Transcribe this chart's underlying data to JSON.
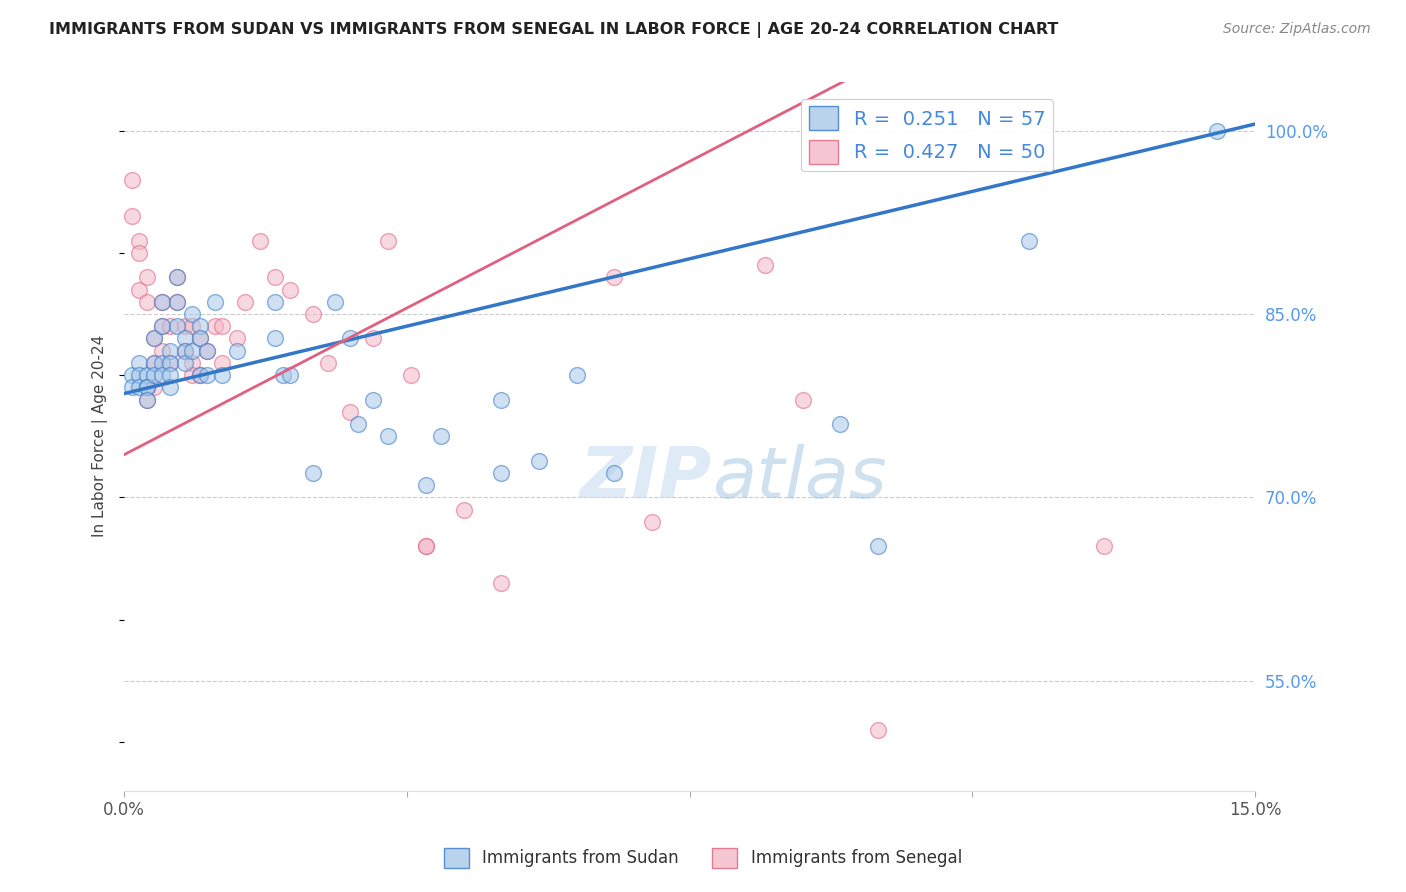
{
  "title": "IMMIGRANTS FROM SUDAN VS IMMIGRANTS FROM SENEGAL IN LABOR FORCE | AGE 20-24 CORRELATION CHART",
  "source": "Source: ZipAtlas.com",
  "ylabel": "In Labor Force | Age 20-24",
  "xlim": [
    0.0,
    0.15
  ],
  "ylim": [
    0.46,
    1.04
  ],
  "sudan_color": "#a8c8e8",
  "senegal_color": "#f4b8c8",
  "sudan_line_color": "#3378c8",
  "senegal_line_color": "#e06080",
  "sudan_R": 0.251,
  "sudan_N": 57,
  "senegal_R": 0.427,
  "senegal_N": 50,
  "background_color": "#ffffff",
  "grid_color": "#cccccc",
  "sudan_scatter_x": [
    0.001,
    0.001,
    0.002,
    0.002,
    0.002,
    0.003,
    0.003,
    0.003,
    0.003,
    0.004,
    0.004,
    0.004,
    0.005,
    0.005,
    0.005,
    0.005,
    0.006,
    0.006,
    0.006,
    0.006,
    0.007,
    0.007,
    0.007,
    0.008,
    0.008,
    0.008,
    0.009,
    0.009,
    0.01,
    0.01,
    0.01,
    0.011,
    0.011,
    0.012,
    0.013,
    0.015,
    0.02,
    0.02,
    0.021,
    0.022,
    0.025,
    0.028,
    0.03,
    0.031,
    0.033,
    0.035,
    0.04,
    0.042,
    0.05,
    0.05,
    0.055,
    0.06,
    0.065,
    0.095,
    0.1,
    0.12,
    0.145
  ],
  "sudan_scatter_y": [
    0.8,
    0.79,
    0.81,
    0.8,
    0.79,
    0.8,
    0.79,
    0.79,
    0.78,
    0.83,
    0.81,
    0.8,
    0.86,
    0.84,
    0.81,
    0.8,
    0.82,
    0.81,
    0.8,
    0.79,
    0.88,
    0.86,
    0.84,
    0.83,
    0.82,
    0.81,
    0.85,
    0.82,
    0.84,
    0.83,
    0.8,
    0.82,
    0.8,
    0.86,
    0.8,
    0.82,
    0.86,
    0.83,
    0.8,
    0.8,
    0.72,
    0.86,
    0.83,
    0.76,
    0.78,
    0.75,
    0.71,
    0.75,
    0.72,
    0.78,
    0.73,
    0.8,
    0.72,
    0.76,
    0.66,
    0.91,
    1.0
  ],
  "senegal_scatter_x": [
    0.001,
    0.001,
    0.002,
    0.002,
    0.002,
    0.003,
    0.003,
    0.003,
    0.004,
    0.004,
    0.004,
    0.005,
    0.005,
    0.005,
    0.006,
    0.006,
    0.007,
    0.007,
    0.008,
    0.008,
    0.009,
    0.009,
    0.009,
    0.01,
    0.01,
    0.011,
    0.012,
    0.013,
    0.013,
    0.015,
    0.016,
    0.018,
    0.02,
    0.022,
    0.025,
    0.027,
    0.03,
    0.033,
    0.035,
    0.038,
    0.04,
    0.04,
    0.045,
    0.05,
    0.065,
    0.07,
    0.085,
    0.09,
    0.1,
    0.13
  ],
  "senegal_scatter_y": [
    0.96,
    0.93,
    0.91,
    0.9,
    0.87,
    0.88,
    0.86,
    0.78,
    0.83,
    0.81,
    0.79,
    0.86,
    0.84,
    0.82,
    0.84,
    0.81,
    0.88,
    0.86,
    0.84,
    0.82,
    0.84,
    0.81,
    0.8,
    0.83,
    0.8,
    0.82,
    0.84,
    0.81,
    0.84,
    0.83,
    0.86,
    0.91,
    0.88,
    0.87,
    0.85,
    0.81,
    0.77,
    0.83,
    0.91,
    0.8,
    0.66,
    0.66,
    0.69,
    0.63,
    0.88,
    0.68,
    0.89,
    0.78,
    0.51,
    0.66
  ]
}
